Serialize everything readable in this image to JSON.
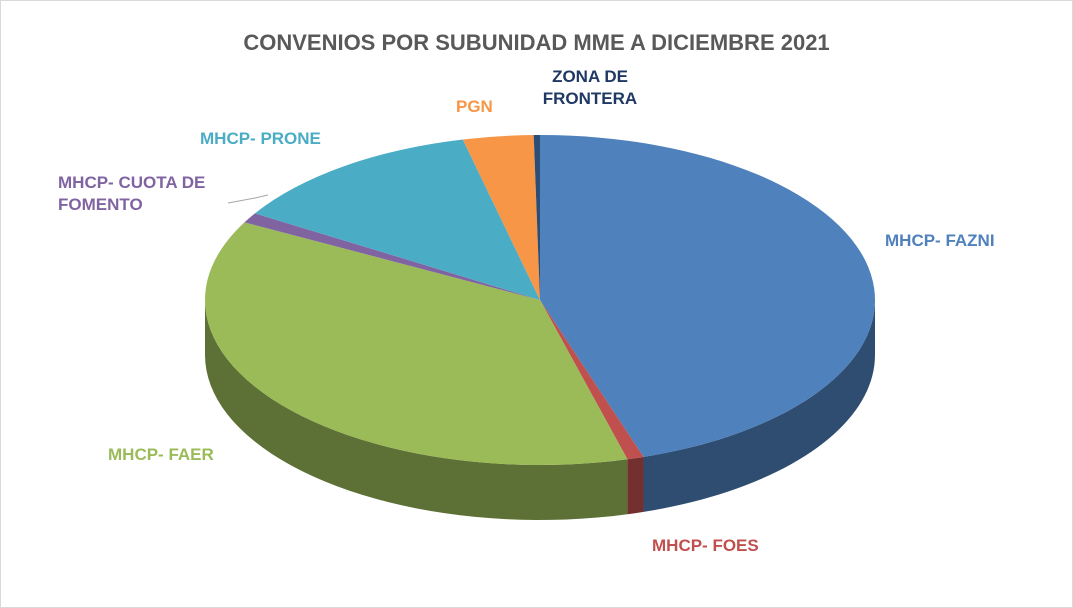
{
  "chart_data": {
    "type": "pie3d",
    "title": "CONVENIOS POR SUBUNIDAD MME  A DICIEMBRE 2021",
    "categories": [
      "MHCP- FAZNI",
      "MHCP- FOES",
      "MHCP- FAER",
      "MHCP- CUOTA DE FOMENTO",
      "MHCP- PRONE",
      "PGN",
      "ZONA DE FRONTERA"
    ],
    "values": [
      45,
      0.8,
      37,
      1,
      12.5,
      3.4,
      0.3
    ],
    "colors": [
      "#4f81bd",
      "#c0504d",
      "#9bbb59",
      "#8064a2",
      "#4bacc6",
      "#f79646",
      "#2c4d75"
    ]
  }
}
